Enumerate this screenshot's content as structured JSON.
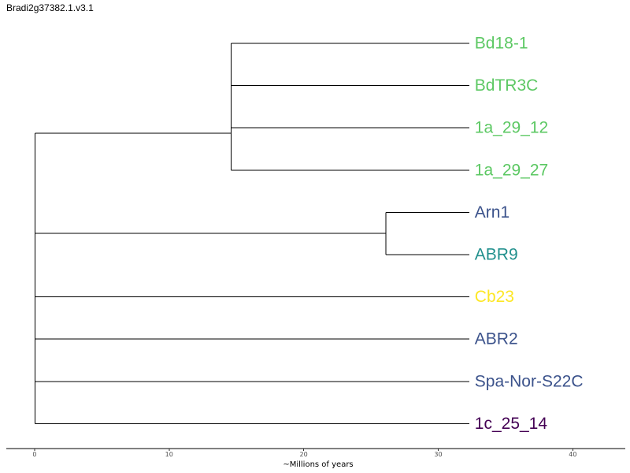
{
  "title": "Bradi2g37382.1.v3.1",
  "axis": {
    "label": "~Millions of years",
    "ticks": [
      0,
      10,
      20,
      30,
      40
    ],
    "range": [
      -2.1,
      43.9
    ]
  },
  "colors": {
    "green": "#5cc863",
    "blue": "#3b528b",
    "teal": "#21908d",
    "yellow": "#fde725",
    "purple": "#440154"
  },
  "tree": {
    "type": "phylogram",
    "root_age": 0,
    "leaves": [
      {
        "name": "Bd18-1",
        "color": "green",
        "depth": 32.3
      },
      {
        "name": "BdTR3C",
        "color": "green",
        "depth": 32.3
      },
      {
        "name": "1a_29_12",
        "color": "green",
        "depth": 32.3
      },
      {
        "name": "1a_29_27",
        "color": "green",
        "depth": 32.3
      },
      {
        "name": "Arn1",
        "color": "blue",
        "depth": 32.3
      },
      {
        "name": "ABR9",
        "color": "teal",
        "depth": 32.3
      },
      {
        "name": "Cb23",
        "color": "yellow",
        "depth": 32.3
      },
      {
        "name": "ABR2",
        "color": "blue",
        "depth": 32.3
      },
      {
        "name": "Spa-Nor-S22C",
        "color": "blue",
        "depth": 32.3
      },
      {
        "name": "1c_25_14",
        "color": "purple",
        "depth": 32.3
      }
    ],
    "internal_nodes": [
      {
        "depth": 14.6,
        "children": [
          0,
          1,
          2,
          3
        ]
      },
      {
        "depth": 14.6,
        "children": [
          0,
          1,
          2
        ]
      },
      {
        "depth": 14.6,
        "children": [
          0,
          1
        ]
      },
      {
        "depth": 26.1,
        "children": [
          4,
          5
        ]
      },
      {
        "depth": 0.05,
        "children": [
          6,
          7,
          8,
          9
        ]
      }
    ]
  }
}
